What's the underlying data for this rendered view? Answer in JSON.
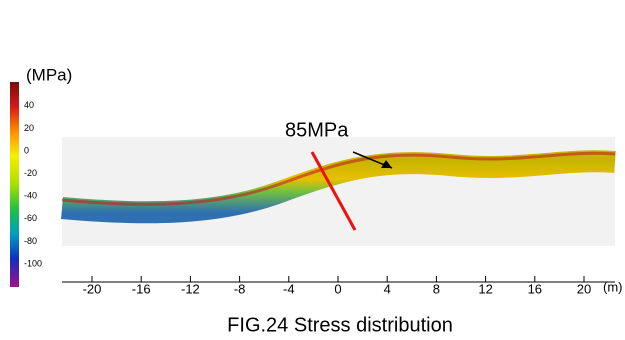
{
  "colorbar": {
    "unit": "(MPa)",
    "ticks": [
      40,
      20,
      0,
      -20,
      -40,
      -60,
      -80,
      -100
    ]
  },
  "axis": {
    "unit": "(m)",
    "ticks": [
      -20,
      -16,
      -12,
      -8,
      -4,
      0,
      4,
      8,
      12,
      16,
      20
    ]
  },
  "annotation": "85MPa",
  "caption": "FIG.24 Stress distribution"
}
